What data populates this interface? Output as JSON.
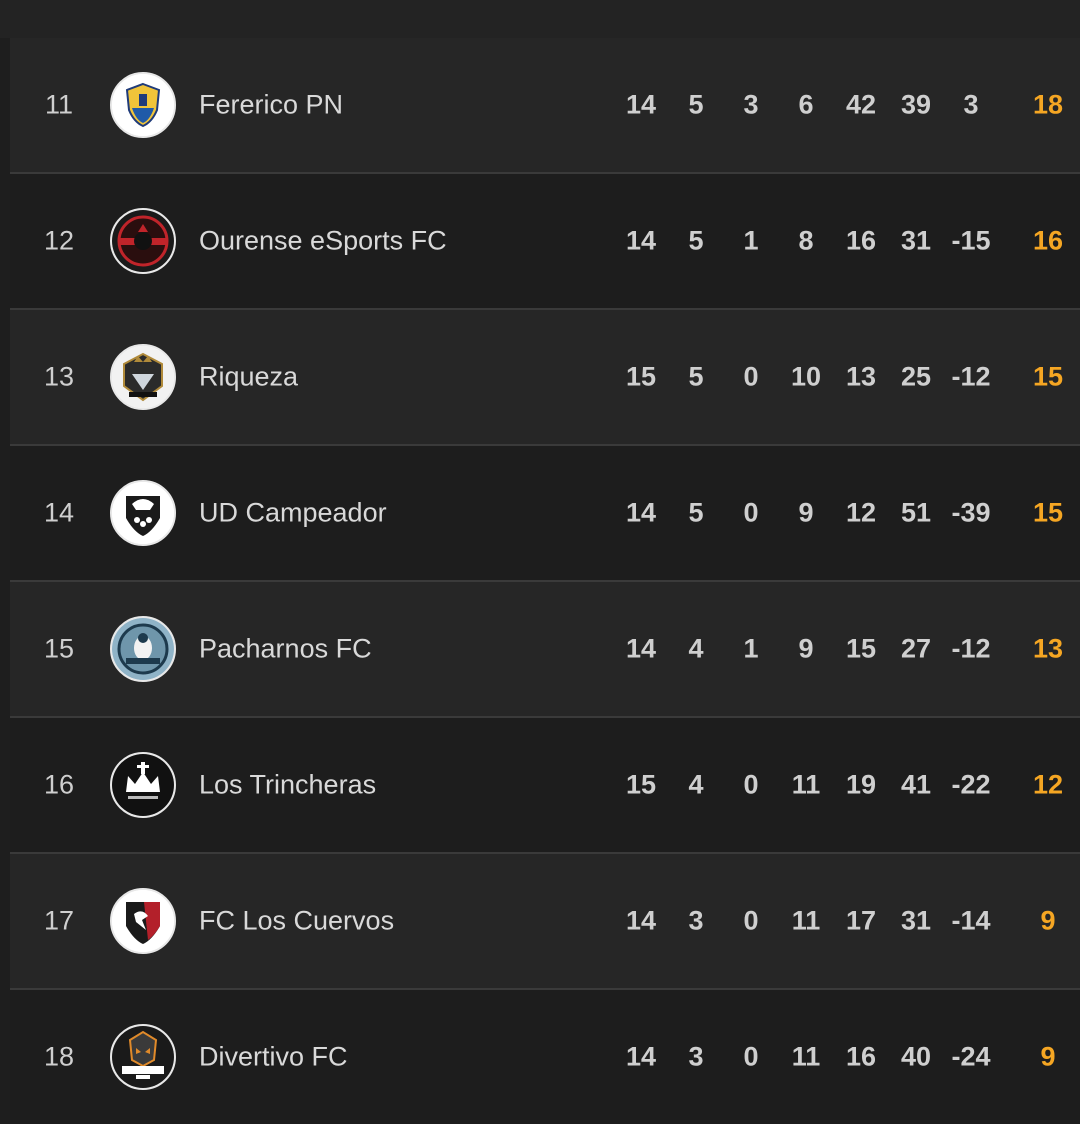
{
  "standings": {
    "accent_color": "#f5a623",
    "rows": [
      {
        "rank": "11",
        "team": "Fererico PN",
        "logo_icon": "fererico-pn-crest-icon",
        "stats": [
          "14",
          "5",
          "3",
          "6",
          "42",
          "39",
          "3"
        ],
        "points": "18"
      },
      {
        "rank": "12",
        "team": "Ourense eSports FC",
        "logo_icon": "ourense-esports-crest-icon",
        "stats": [
          "14",
          "5",
          "1",
          "8",
          "16",
          "31",
          "-15"
        ],
        "points": "16"
      },
      {
        "rank": "13",
        "team": "Riqueza",
        "logo_icon": "riqueza-crest-icon",
        "stats": [
          "15",
          "5",
          "0",
          "10",
          "13",
          "25",
          "-12"
        ],
        "points": "15"
      },
      {
        "rank": "14",
        "team": "UD Campeador",
        "logo_icon": "ud-campeador-crest-icon",
        "stats": [
          "14",
          "5",
          "0",
          "9",
          "12",
          "51",
          "-39"
        ],
        "points": "15"
      },
      {
        "rank": "15",
        "team": "Pacharnos FC",
        "logo_icon": "pacharnos-crest-icon",
        "stats": [
          "14",
          "4",
          "1",
          "9",
          "15",
          "27",
          "-12"
        ],
        "points": "13"
      },
      {
        "rank": "16",
        "team": "Los Trincheras",
        "logo_icon": "los-trincheras-crest-icon",
        "stats": [
          "15",
          "4",
          "0",
          "11",
          "19",
          "41",
          "-22"
        ],
        "points": "12"
      },
      {
        "rank": "17",
        "team": "FC Los Cuervos",
        "logo_icon": "fc-los-cuervos-crest-icon",
        "stats": [
          "14",
          "3",
          "0",
          "11",
          "17",
          "31",
          "-14"
        ],
        "points": "9"
      },
      {
        "rank": "18",
        "team": "Divertivo FC",
        "logo_icon": "divertivo-crest-icon",
        "stats": [
          "14",
          "3",
          "0",
          "11",
          "16",
          "40",
          "-24"
        ],
        "points": "9"
      }
    ]
  }
}
